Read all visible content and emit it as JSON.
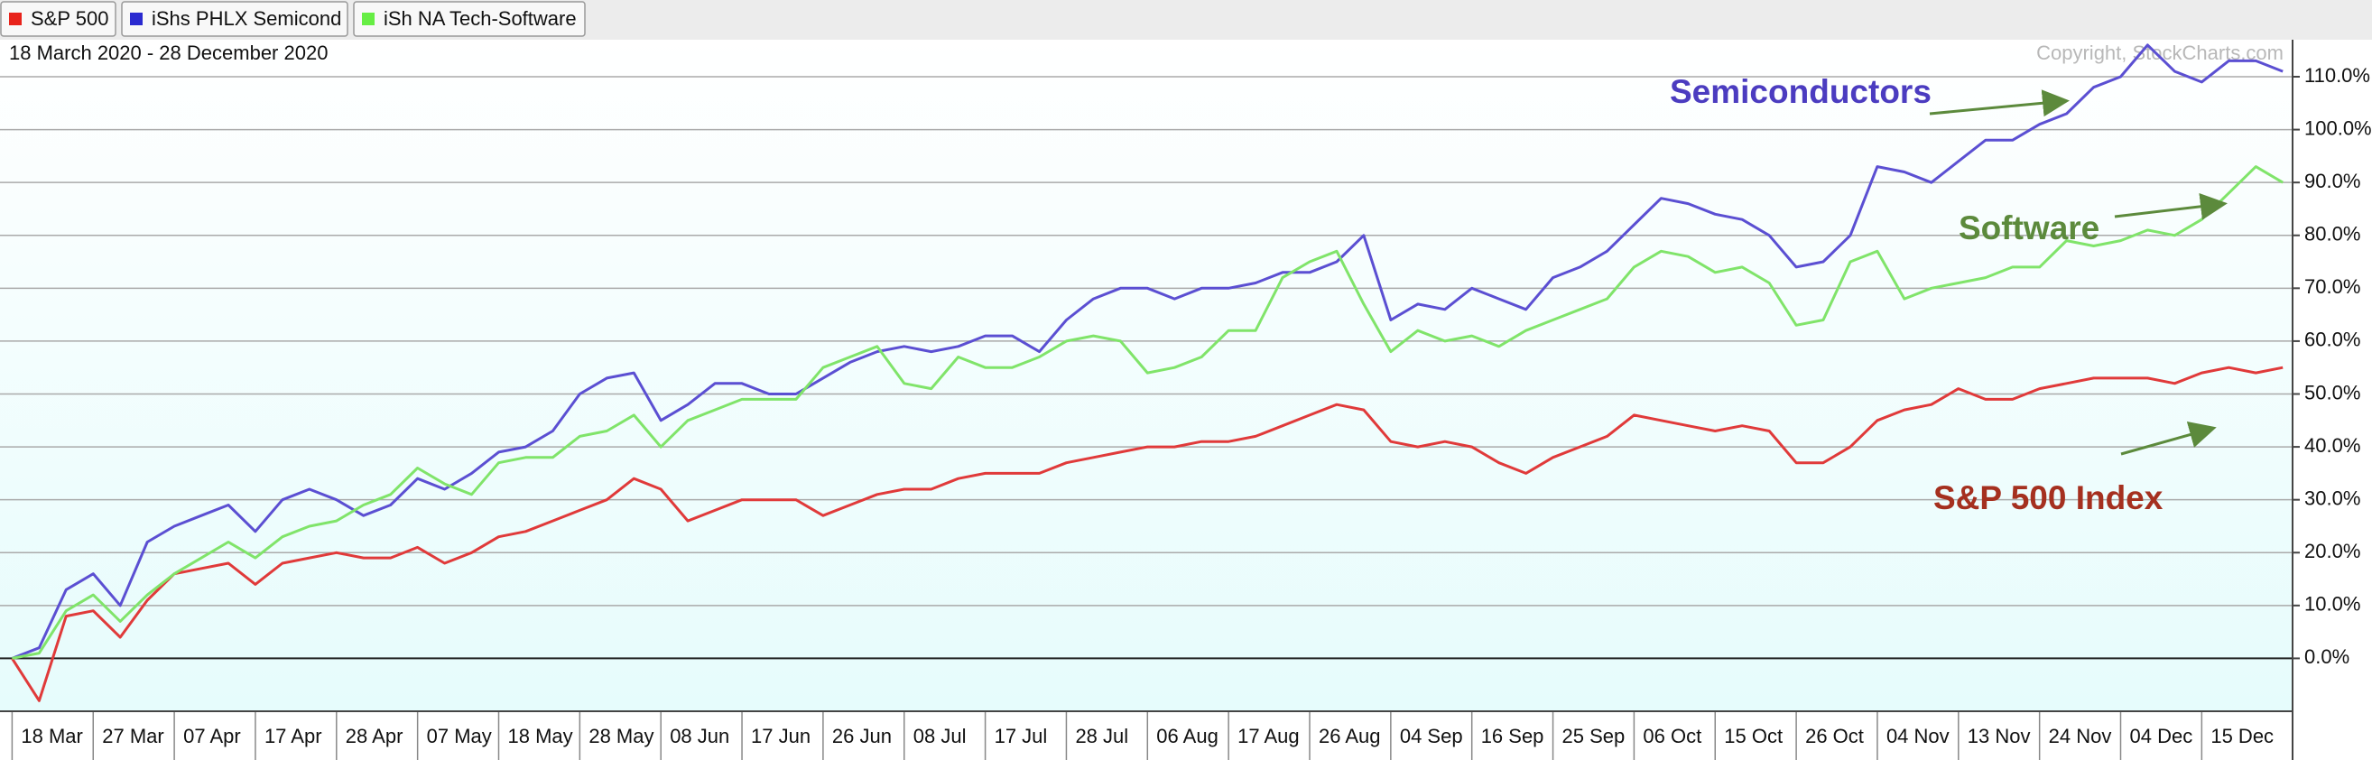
{
  "chart_data": {
    "type": "line",
    "subtitle": "18 March 2020 - 28 December 2020",
    "copyright": "Copyright, StockCharts.com",
    "categories": [
      "18 Mar",
      null,
      null,
      "27 Mar",
      null,
      null,
      "07 Apr",
      null,
      null,
      "17 Apr",
      null,
      null,
      "28 Apr",
      null,
      null,
      "07 May",
      null,
      null,
      "18 May",
      null,
      null,
      "28 May",
      null,
      null,
      "08 Jun",
      null,
      null,
      "17 Jun",
      null,
      null,
      "26 Jun",
      null,
      null,
      "08 Jul",
      null,
      null,
      "17 Jul",
      null,
      null,
      "28 Jul",
      null,
      null,
      "06 Aug",
      null,
      null,
      "17 Aug",
      null,
      null,
      "26 Aug",
      null,
      null,
      "04 Sep",
      null,
      null,
      "16 Sep",
      null,
      null,
      "25 Sep",
      null,
      null,
      "06 Oct",
      null,
      null,
      "15 Oct",
      null,
      null,
      "26 Oct",
      null,
      null,
      "04 Nov",
      null,
      null,
      "13 Nov",
      null,
      null,
      "24 Nov",
      null,
      null,
      "04 Dec",
      null,
      null,
      "15 Dec",
      null,
      null,
      null
    ],
    "series": [
      {
        "name": "S&P 500",
        "color": "#e03a3a",
        "legend_color": "#e8231b",
        "values": [
          0,
          -8,
          8,
          9,
          4,
          11,
          16,
          17,
          18,
          14,
          18,
          19,
          20,
          19,
          19,
          21,
          18,
          20,
          23,
          24,
          26,
          28,
          30,
          34,
          32,
          26,
          28,
          30,
          30,
          30,
          27,
          29,
          31,
          32,
          32,
          34,
          35,
          35,
          35,
          37,
          38,
          39,
          40,
          40,
          41,
          41,
          42,
          44,
          46,
          48,
          47,
          41,
          40,
          41,
          40,
          37,
          35,
          38,
          40,
          42,
          46,
          45,
          44,
          43,
          44,
          43,
          37,
          37,
          40,
          45,
          47,
          48,
          51,
          49,
          49,
          51,
          52,
          53,
          53,
          53,
          52,
          54,
          55,
          54,
          55
        ]
      },
      {
        "name": "iShs PHLX Semicond",
        "color": "#5b4fd2",
        "legend_color": "#2a2ad0",
        "values": [
          0,
          2,
          13,
          16,
          10,
          22,
          25,
          27,
          29,
          24,
          30,
          32,
          30,
          27,
          29,
          34,
          32,
          35,
          39,
          40,
          43,
          50,
          53,
          54,
          45,
          48,
          52,
          52,
          50,
          50,
          53,
          56,
          58,
          59,
          58,
          59,
          61,
          61,
          58,
          64,
          68,
          70,
          70,
          68,
          70,
          70,
          71,
          73,
          73,
          75,
          80,
          64,
          67,
          66,
          70,
          68,
          66,
          72,
          74,
          77,
          82,
          87,
          86,
          84,
          83,
          80,
          74,
          75,
          80,
          93,
          92,
          90,
          94,
          98,
          98,
          101,
          103,
          108,
          110,
          116,
          111,
          109,
          113,
          113,
          111
        ]
      },
      {
        "name": "iSh NA Tech-Software",
        "color": "#80e46a",
        "legend_color": "#66ee44",
        "values": [
          0,
          1,
          9,
          12,
          7,
          12,
          16,
          19,
          22,
          19,
          23,
          25,
          26,
          29,
          31,
          36,
          33,
          31,
          37,
          38,
          38,
          42,
          43,
          46,
          40,
          45,
          47,
          49,
          49,
          49,
          55,
          57,
          59,
          52,
          51,
          57,
          55,
          55,
          57,
          60,
          61,
          60,
          54,
          55,
          57,
          62,
          62,
          72,
          75,
          77,
          67,
          58,
          62,
          60,
          61,
          59,
          62,
          64,
          66,
          68,
          74,
          77,
          76,
          73,
          74,
          71,
          63,
          64,
          75,
          77,
          68,
          70,
          71,
          72,
          74,
          74,
          79,
          78,
          79,
          81,
          80,
          83,
          88,
          93,
          90
        ]
      }
    ],
    "ylim": [
      -10,
      117
    ],
    "yticks": [
      {
        "value": 0,
        "label": "0.0%"
      },
      {
        "value": 10,
        "label": "10.0%"
      },
      {
        "value": 20,
        "label": "20.0%"
      },
      {
        "value": 30,
        "label": "30.0%"
      },
      {
        "value": 40,
        "label": "40.0%"
      },
      {
        "value": 50,
        "label": "50.0%"
      },
      {
        "value": 60,
        "label": "60.0%"
      },
      {
        "value": 70,
        "label": "70.0%"
      },
      {
        "value": 80,
        "label": "80.0%"
      },
      {
        "value": 90,
        "label": "90.0%"
      },
      {
        "value": 100,
        "label": "100.0%"
      },
      {
        "value": 110,
        "label": "110.0%"
      }
    ],
    "grid": true,
    "annotations": [
      {
        "text": "Semiconductors",
        "color": "#4b3cc0"
      },
      {
        "text": "Software",
        "color": "#5c8a3c"
      },
      {
        "text": "S&P 500 Index",
        "color": "#a5301f"
      }
    ]
  }
}
